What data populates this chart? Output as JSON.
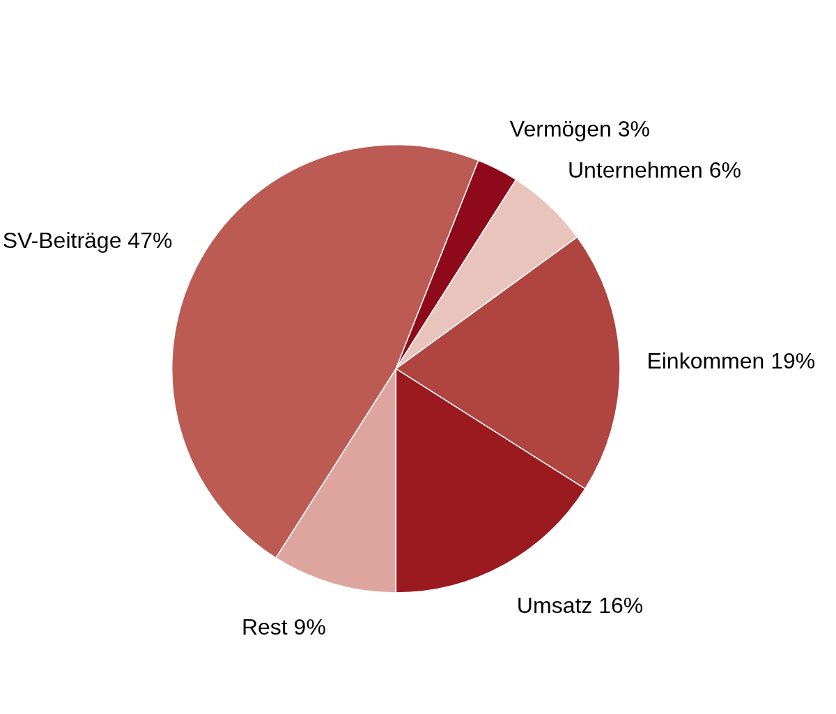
{
  "chart_data": {
    "type": "pie",
    "categories": [
      "Rest",
      "SV-Beiträge",
      "Vermögen",
      "Unternehmen",
      "Einkommen",
      "Umsatz"
    ],
    "values": [
      9,
      47,
      3,
      6,
      19,
      16
    ],
    "value_labels": [
      "9%",
      "47%",
      "3%",
      "6%",
      "19%",
      "16%"
    ],
    "colors": [
      "#dea59e",
      "#bc5b53",
      "#8e0a1b",
      "#e8c4bc",
      "#b04440",
      "#9a1a20"
    ]
  }
}
